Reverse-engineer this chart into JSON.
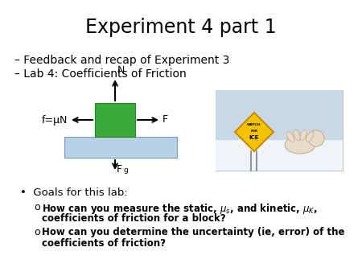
{
  "title": "Experiment 4 part 1",
  "bullet1": "– Feedback and recap of Experiment 3",
  "bullet2": "– Lab 4: Coefficients of Friction",
  "goals_header": "•  Goals for this lab:",
  "background": "#ffffff",
  "text_color": "#000000",
  "block_color": "#3aaa3a",
  "surface_color": "#b8d0e8",
  "arrow_color": "#000000",
  "label_N": "N",
  "label_F": "F",
  "label_f": "f=μN",
  "label_Fg": "F",
  "label_Fg_sub": "g"
}
